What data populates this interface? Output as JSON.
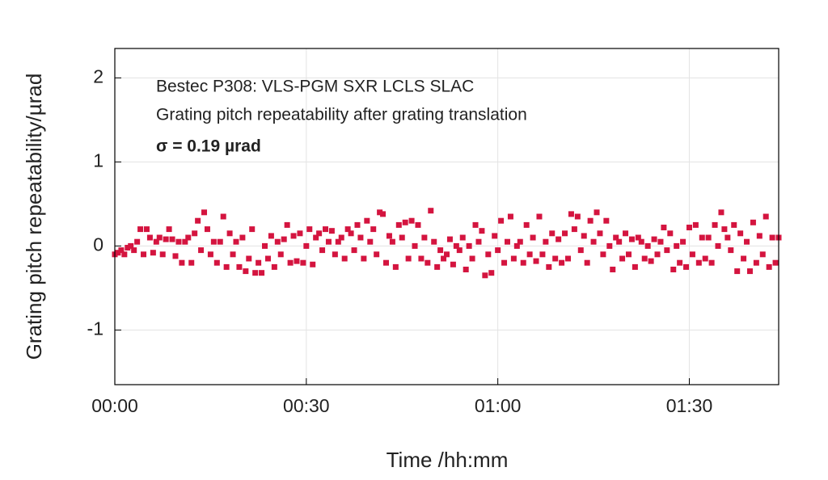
{
  "chart_data": {
    "type": "scatter",
    "annotations": [
      "Bestec P308: VLS-PGM SXR LCLS SLAC",
      "Grating pitch repeatability after grating translation",
      "σ = 0.19 µrad"
    ],
    "xlabel": "Time /hh:mm",
    "ylabel": "Grating pitch repeatability/µrad",
    "color": "#d4143f",
    "grid": true,
    "xlim": [
      0,
      104
    ],
    "ylim": [
      -1.65,
      2.35
    ],
    "xticks": [
      {
        "value": 0,
        "label": "00:00"
      },
      {
        "value": 30,
        "label": "00:30"
      },
      {
        "value": 60,
        "label": "01:00"
      },
      {
        "value": 90,
        "label": "01:30"
      }
    ],
    "yticks": [
      -1,
      0,
      1,
      2
    ],
    "x": [
      0,
      0.5,
      1,
      1.5,
      2,
      2.5,
      3,
      3.5,
      4,
      4.5,
      5,
      5.5,
      6,
      6.5,
      7,
      7.5,
      8,
      8.5,
      9,
      9.5,
      10,
      10.5,
      11,
      11.5,
      12,
      12.5,
      13,
      13.5,
      14,
      14.5,
      15,
      15.5,
      16,
      16.5,
      17,
      17.5,
      18,
      18.5,
      19,
      19.5,
      20,
      20.5,
      21,
      21.5,
      22,
      22.5,
      23,
      23.5,
      24,
      24.5,
      25,
      25.5,
      26,
      26.5,
      27,
      27.5,
      28,
      28.5,
      29,
      29.5,
      30,
      30.5,
      31,
      31.5,
      32,
      32.5,
      33,
      33.5,
      34,
      34.5,
      35,
      35.5,
      36,
      36.5,
      37,
      37.5,
      38,
      38.5,
      39,
      39.5,
      40,
      40.5,
      41,
      41.5,
      42,
      42.5,
      43,
      43.5,
      44,
      44.5,
      45,
      45.5,
      46,
      46.5,
      47,
      47.5,
      48,
      48.5,
      49,
      49.5,
      50,
      50.5,
      51,
      51.5,
      52,
      52.5,
      53,
      53.5,
      54,
      54.5,
      55,
      55.5,
      56,
      56.5,
      57,
      57.5,
      58,
      58.5,
      59,
      59.5,
      60,
      60.5,
      61,
      61.5,
      62,
      62.5,
      63,
      63.5,
      64,
      64.5,
      65,
      65.5,
      66,
      66.5,
      67,
      67.5,
      68,
      68.5,
      69,
      69.5,
      70,
      70.5,
      71,
      71.5,
      72,
      72.5,
      73,
      73.5,
      74,
      74.5,
      75,
      75.5,
      76,
      76.5,
      77,
      77.5,
      78,
      78.5,
      79,
      79.5,
      80,
      80.5,
      81,
      81.5,
      82,
      82.5,
      83,
      83.5,
      84,
      84.5,
      85,
      85.5,
      86,
      86.5,
      87,
      87.5,
      88,
      88.5,
      89,
      89.5,
      90,
      90.5,
      91,
      91.5,
      92,
      92.5,
      93,
      93.5,
      94,
      94.5,
      95,
      95.5,
      96,
      96.5,
      97,
      97.5,
      98,
      98.5,
      99,
      99.5,
      100,
      100.5,
      101,
      101.5,
      102,
      102.5,
      103,
      103.5,
      104
    ],
    "values": [
      -0.1,
      -0.08,
      -0.05,
      -0.1,
      -0.02,
      0,
      -0.05,
      0.05,
      0.2,
      -0.1,
      0.2,
      0.1,
      -0.08,
      0.05,
      0.1,
      -0.1,
      0.08,
      0.2,
      0.08,
      -0.12,
      0.05,
      -0.2,
      0.05,
      0.1,
      -0.2,
      0.15,
      0.3,
      -0.05,
      0.4,
      0.2,
      -0.1,
      0.05,
      -0.2,
      0.05,
      0.35,
      -0.25,
      0.15,
      -0.1,
      0.05,
      -0.25,
      0.1,
      -0.3,
      -0.15,
      0.2,
      -0.32,
      -0.2,
      -0.32,
      0,
      -0.15,
      0.12,
      -0.25,
      0.05,
      -0.1,
      0.08,
      0.25,
      -0.2,
      0.12,
      -0.18,
      0.15,
      -0.2,
      0,
      0.2,
      -0.22,
      0.1,
      0.15,
      -0.05,
      0.2,
      0.05,
      0.18,
      -0.1,
      0.05,
      0.1,
      -0.15,
      0.2,
      0.15,
      -0.05,
      0.25,
      0.1,
      -0.15,
      0.3,
      0.05,
      0.2,
      -0.1,
      0.4,
      0.38,
      -0.2,
      0.12,
      0.05,
      -0.25,
      0.25,
      0.1,
      0.28,
      -0.15,
      0.3,
      0,
      0.25,
      -0.15,
      0.1,
      -0.2,
      0.42,
      0.05,
      -0.25,
      -0.05,
      -0.15,
      -0.1,
      0.08,
      -0.22,
      0,
      -0.05,
      0.1,
      -0.28,
      0,
      -0.15,
      0.25,
      0.05,
      0.18,
      -0.35,
      -0.1,
      -0.32,
      0.12,
      -0.05,
      0.3,
      -0.2,
      0.05,
      0.35,
      -0.15,
      0,
      0.05,
      -0.2,
      0.25,
      -0.1,
      0.1,
      -0.18,
      0.35,
      -0.1,
      0.05,
      -0.25,
      0.15,
      -0.15,
      0.08,
      -0.2,
      0.15,
      -0.15,
      0.38,
      0.2,
      0.35,
      -0.05,
      0.12,
      -0.2,
      0.3,
      0.05,
      0.4,
      0.15,
      -0.1,
      0.3,
      0,
      -0.28,
      0.1,
      0.05,
      -0.15,
      0.15,
      -0.1,
      0.08,
      -0.25,
      0.1,
      0.05,
      -0.15,
      0,
      -0.18,
      0.08,
      -0.1,
      0.05,
      0.22,
      -0.05,
      0.15,
      -0.28,
      0,
      -0.2,
      0.05,
      -0.25,
      0.22,
      -0.1,
      0.25,
      -0.2,
      0.1,
      -0.15,
      0.1,
      -0.2,
      0.25,
      0,
      0.4,
      0.2,
      0.1,
      -0.05,
      0.25,
      -0.3,
      0.15,
      -0.15,
      0.05,
      -0.3,
      0.28,
      -0.2,
      0.12,
      -0.1,
      0.35,
      -0.25,
      0.1,
      -0.2,
      0.1
    ]
  }
}
